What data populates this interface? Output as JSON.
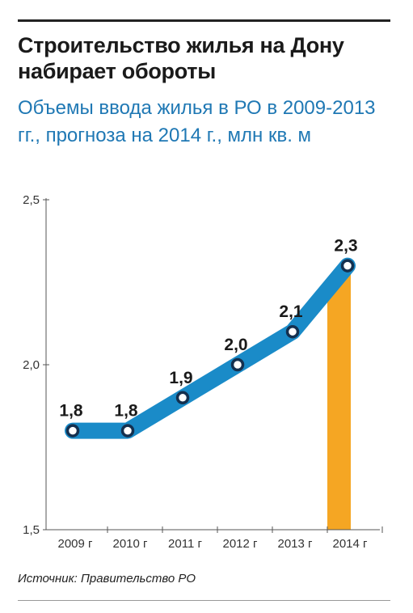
{
  "header": {
    "title": "Строительство жилья на Дону набирает обороты",
    "subtitle": "Объемы ввода жилья в РО в 2009-2013 гг., прогноза на 2014 г., млн кв. м"
  },
  "source": "Источник: Правительство РО",
  "colors": {
    "line": "#1a8bc8",
    "forecast": "#f5a623",
    "marker_border": "#14304f",
    "marker_fill": "#ffffff",
    "subtitle": "#1f78b4"
  },
  "chart_data": {
    "type": "line",
    "categories": [
      "2009 г",
      "2010 г",
      "2011 г",
      "2012 г",
      "2013 г",
      "2014 г"
    ],
    "values": [
      1.8,
      1.8,
      1.9,
      2.0,
      2.1,
      2.3
    ],
    "data_labels": [
      "1,8",
      "1,8",
      "1,9",
      "2,0",
      "2,1",
      "2,3"
    ],
    "forecast_category": "2014 г",
    "ylim": [
      1.5,
      2.5
    ],
    "yticks": [
      1.5,
      2.0,
      2.5
    ],
    "ytick_labels": [
      "1,5",
      "2,0",
      "2,5"
    ],
    "xlabel": "",
    "ylabel": "",
    "grid": false,
    "legend": "none"
  }
}
